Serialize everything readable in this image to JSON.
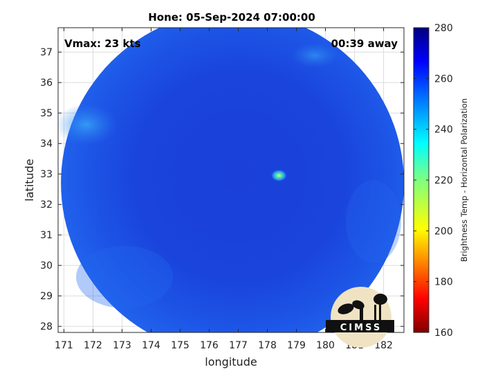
{
  "chart_data": {
    "type": "heatmap",
    "title": "Hone: 05-Sep-2024 07:00:00",
    "xlabel": "longitude",
    "ylabel": "latitude",
    "xlim": [
      170.8,
      182.7
    ],
    "ylim": [
      27.8,
      37.8
    ],
    "xticks": [
      "171",
      "172",
      "173",
      "174",
      "175",
      "176",
      "177",
      "178",
      "179",
      "180",
      "181",
      "182"
    ],
    "yticks": [
      "28",
      "29",
      "30",
      "31",
      "32",
      "33",
      "34",
      "35",
      "36",
      "37"
    ],
    "grid": true,
    "annotations": {
      "vmax": "Vmax: 23 kts",
      "time_away": "00:39 away"
    },
    "colorbar": {
      "label": "Brightness Temp - Horizontal Polarization",
      "range": [
        160,
        280
      ],
      "ticks": [
        "280",
        "260",
        "240",
        "220",
        "200",
        "180",
        "160"
      ],
      "colormap": "jet"
    },
    "swath": {
      "center": [
        176.8,
        32.7
      ],
      "typical_value": 262,
      "warm_spot": {
        "lon": 178.4,
        "lat": 32.95,
        "value": 238
      }
    },
    "logo_text": "CIMSS"
  },
  "colors": {
    "background": "#ffffff",
    "deep_field": "#1a3fd6",
    "field": "#1c54e8",
    "warm_edge": "#2a80f0"
  }
}
